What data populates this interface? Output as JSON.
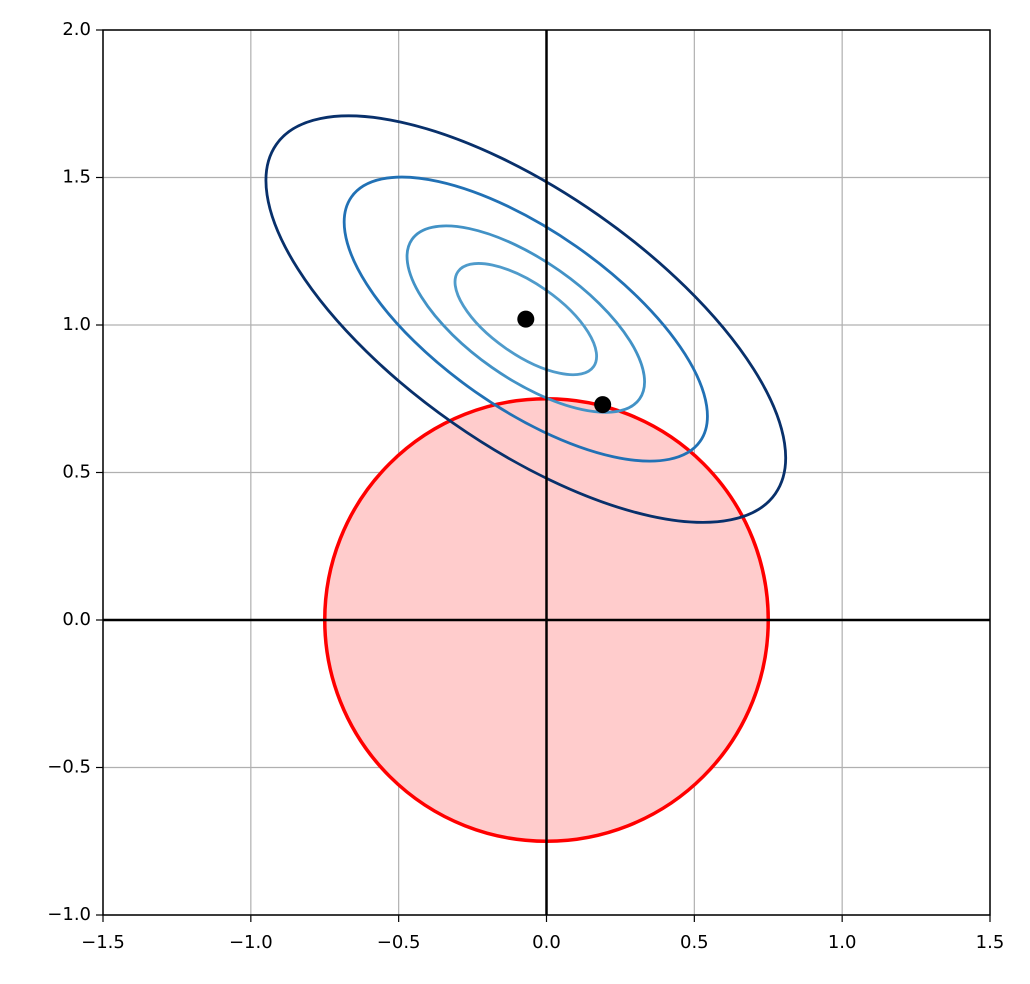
{
  "chart_data": {
    "type": "contour",
    "xlim": [
      -1.5,
      1.5
    ],
    "ylim": [
      -1.0,
      2.0
    ],
    "xticks": [
      {
        "value": -1.5,
        "label": "−1.5"
      },
      {
        "value": -1.0,
        "label": "−1.0"
      },
      {
        "value": -0.5,
        "label": "−0.5"
      },
      {
        "value": 0,
        "label": "0.0"
      },
      0.5,
      {
        "value": 1.0,
        "label": "1.0"
      },
      1.5
    ],
    "yticks": [
      {
        "value": -1.0,
        "label": "−1.0"
      },
      {
        "value": -0.5,
        "label": "−0.5"
      },
      {
        "value": 0,
        "label": "0.0"
      },
      0.5,
      {
        "value": 1.0,
        "label": "1.0"
      },
      1.5,
      {
        "value": 2.0,
        "label": "2.0"
      }
    ],
    "grid": true,
    "region": {
      "center": [
        0,
        0
      ],
      "radius": 0.75,
      "fill": "#ffcccc",
      "color": "#ff0000"
    },
    "contours": {
      "center": [
        -0.07,
        1.02
      ],
      "angle": -35,
      "levels": [
        {
          "a": 0.28,
          "b": 0.12,
          "color": "#4f9bcb"
        },
        {
          "a": 0.47,
          "b": 0.2,
          "color": "#4292c6"
        },
        {
          "a": 0.72,
          "b": 0.3,
          "color": "#2171b5"
        },
        {
          "a": 1.03,
          "b": 0.43,
          "color": "#08306b"
        }
      ]
    },
    "points": {
      "x": [
        -0.07,
        0.19
      ],
      "y": [
        1.02,
        0.73
      ],
      "color": "#000000"
    }
  }
}
